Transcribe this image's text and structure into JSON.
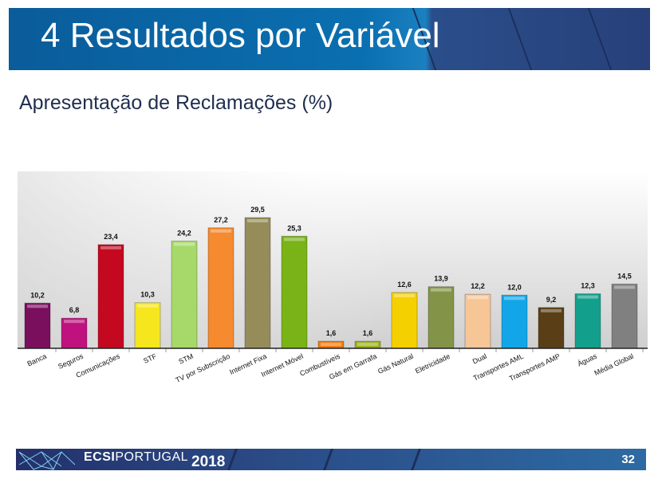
{
  "header": {
    "title": "4 Resultados por Variável"
  },
  "subtitle": "Apresentação de Reclamações (%)",
  "footer": {
    "brand_bold": "ECSI",
    "brand_rest": "PORTUGAL",
    "year": "2018",
    "page": "32"
  },
  "chart_data": {
    "type": "bar",
    "title": "",
    "categories": [
      "Banca",
      "Seguros",
      "Comunicações",
      "STF",
      "STM",
      "TV por Subscrição",
      "Internet Fixa",
      "Internet Móvel",
      "Combustíveis",
      "Gás em Garrafa",
      "Gás Natural",
      "Eletricidade",
      "Dual",
      "Transportes AML",
      "Transportes AMP",
      "Águas",
      "Média Global"
    ],
    "values": [
      10.2,
      6.8,
      23.4,
      10.3,
      24.2,
      27.2,
      29.5,
      25.3,
      1.6,
      1.6,
      12.6,
      13.9,
      12.2,
      12.0,
      9.2,
      12.3,
      14.5
    ],
    "labels": [
      "10,2",
      "6,8",
      "23,4",
      "10,3",
      "24,2",
      "27,2",
      "29,5",
      "25,3",
      "1,6",
      "1,6",
      "12,6",
      "13,9",
      "12,2",
      "12,0",
      "9,2",
      "12,3",
      "14,5"
    ],
    "colors": [
      "#7a0f5e",
      "#c0127e",
      "#c40820",
      "#f5e61e",
      "#a6d96a",
      "#f58a2e",
      "#968c5a",
      "#7ab317",
      "#f07a10",
      "#9bb01a",
      "#f5d000",
      "#839448",
      "#f7c696",
      "#12a6e8",
      "#5a3f16",
      "#12a08c",
      "#808080"
    ],
    "ylim": [
      0,
      35
    ],
    "grid": false,
    "legend": "none"
  }
}
